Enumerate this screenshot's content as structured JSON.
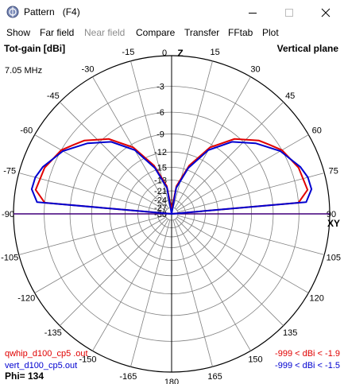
{
  "window": {
    "title": "Pattern   (F4)",
    "icon": "pattern-app-icon"
  },
  "menu": [
    "Show",
    "Far field",
    "Near field",
    "Compare",
    "Transfer",
    "FFtab",
    "Plot"
  ],
  "menu_disabled": [
    "Near field"
  ],
  "plot": {
    "header_left": "Tot-gain [dBi]",
    "header_right": "Vertical plane",
    "frequency": "7.05 MHz",
    "top_axis_letter": "Z",
    "right_axis_letter": "XY",
    "angle_labels": [
      "0",
      "15",
      "30",
      "45",
      "60",
      "75",
      "90",
      "105",
      "120",
      "135",
      "150",
      "165",
      "180",
      "-165",
      "-150",
      "-135",
      "-120",
      "-105",
      "-90",
      "-75",
      "-60",
      "-45",
      "-30",
      "-15"
    ],
    "db_labels": [
      "-3",
      "-6",
      "-9",
      "-12",
      "-15",
      "-18",
      "-21",
      "-24",
      "-27",
      "-30"
    ],
    "traces": [
      {
        "file": "qwhip_d100_cp5 .out",
        "range": "-999 < dBi < -1.9",
        "color": "#e00000"
      },
      {
        "file": "vert_d100_cp5.out",
        "range": "-999 < dBi < -1.5",
        "color": "#0000d0"
      }
    ],
    "phi": "Phi= 134"
  },
  "chart_data": {
    "type": "polar",
    "title": "Vertical plane",
    "radial_unit": "dBi",
    "radial_range": [
      -30,
      0
    ],
    "angle_reference": "0 = zenith (Z), 90 = horizon (XY)",
    "series": [
      {
        "name": "qwhip_d100_cp5 .out",
        "color": "#e00000",
        "angles_deg": [
          0,
          10,
          20,
          30,
          40,
          50,
          55,
          60,
          70,
          80,
          85,
          90
        ],
        "gain_dbi": [
          -28,
          -19.5,
          -14,
          -9.5,
          -6.5,
          -4.5,
          -3.8,
          -3.0,
          -2.2,
          -1.9,
          -3.0,
          -30
        ]
      },
      {
        "name": "vert_d100_cp5.out",
        "color": "#0000d0",
        "angles_deg": [
          0,
          10,
          20,
          30,
          40,
          50,
          60,
          70,
          75,
          80,
          85,
          90
        ],
        "gain_dbi": [
          -30,
          -20,
          -14.5,
          -10,
          -7,
          -5,
          -3.2,
          -2.0,
          -1.6,
          -1.5,
          -2.2,
          -30
        ]
      }
    ]
  }
}
